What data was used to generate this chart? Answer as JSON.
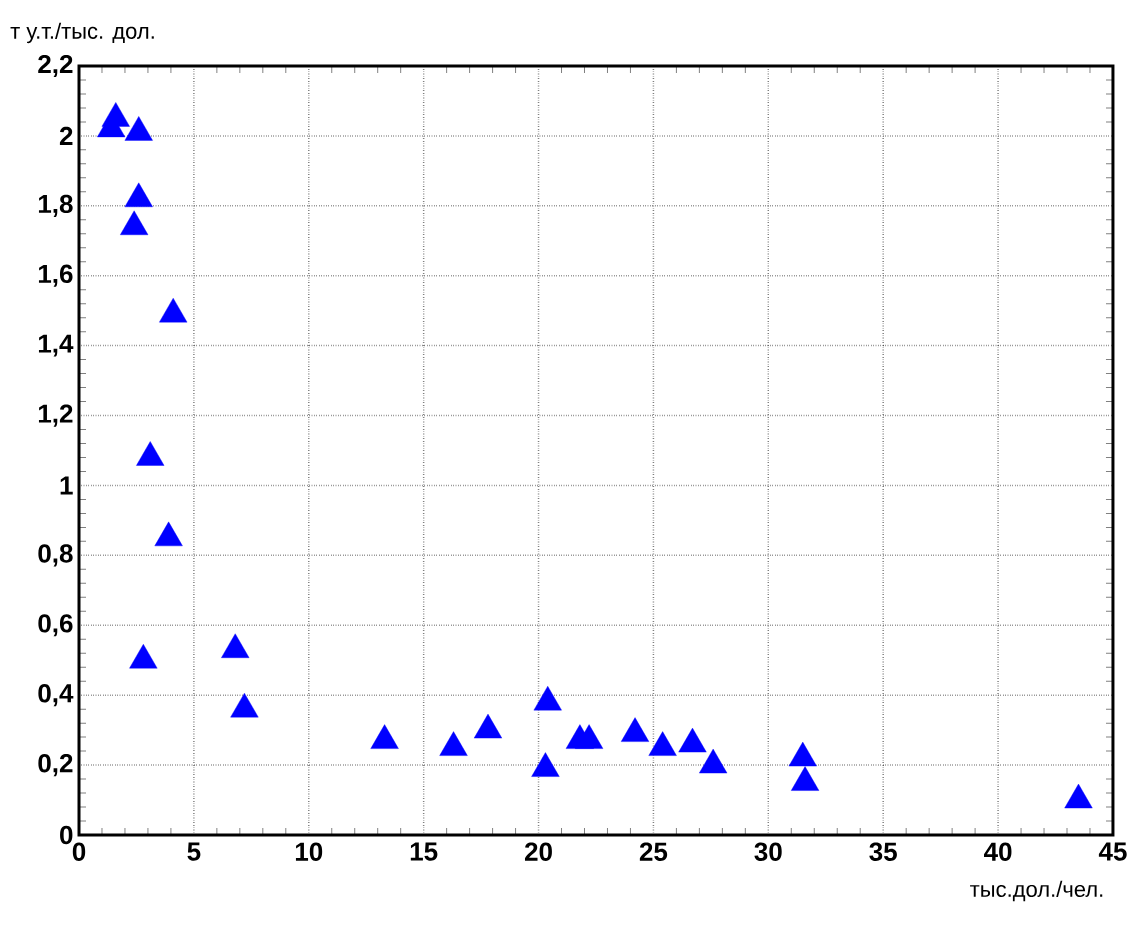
{
  "chart_data": {
    "type": "scatter",
    "xlabel": "тыс.дол./чел.",
    "ylabel": "т у.т./тыс. дол.",
    "x": [
      1.4,
      1.6,
      2.6,
      2.6,
      2.4,
      4.1,
      3.1,
      3.9,
      2.8,
      6.8,
      7.2,
      13.3,
      16.3,
      17.8,
      20.4,
      20.3,
      21.8,
      22.2,
      24.2,
      25.4,
      26.7,
      27.6,
      31.5,
      31.6,
      43.5
    ],
    "values": [
      2.02,
      2.05,
      2.01,
      1.82,
      1.74,
      1.49,
      1.08,
      0.85,
      0.5,
      0.53,
      0.36,
      0.27,
      0.25,
      0.3,
      0.38,
      0.19,
      0.27,
      0.27,
      0.29,
      0.25,
      0.26,
      0.2,
      0.22,
      0.15,
      0.1
    ],
    "color": "#0000ff",
    "marker": "triangle",
    "grid": true,
    "xlim": [
      0,
      45
    ],
    "ylim": [
      0,
      2.2
    ],
    "xticks": [
      0,
      5,
      10,
      15,
      20,
      25,
      30,
      35,
      40,
      45
    ],
    "yticks": [
      0,
      {
        "value": 0.2,
        "label": "0,2"
      },
      {
        "value": 0.4,
        "label": "0,4"
      },
      {
        "value": 0.6,
        "label": "0,6"
      },
      {
        "value": 0.8,
        "label": "0,8"
      },
      1,
      {
        "value": 1.2,
        "label": "1,2"
      },
      {
        "value": 1.4,
        "label": "1,4"
      },
      {
        "value": 1.6,
        "label": "1,6"
      },
      {
        "value": 1.8,
        "label": "1,8"
      },
      2,
      {
        "value": 2.2,
        "label": "2,2"
      }
    ]
  }
}
